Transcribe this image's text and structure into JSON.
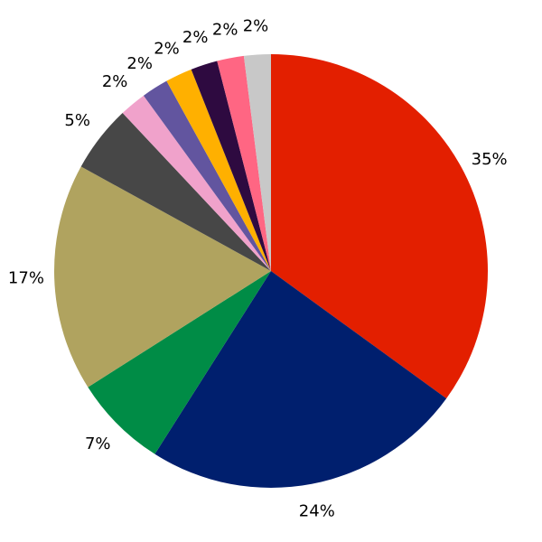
{
  "chart_data": {
    "type": "pie",
    "values": [
      35,
      24,
      7,
      17,
      5,
      2,
      2,
      2,
      2,
      2,
      2
    ],
    "value_labels": [
      "35%",
      "24%",
      "7%",
      "17%",
      "5%",
      "2%",
      "2%",
      "2%",
      "2%",
      "2%",
      "2%"
    ],
    "colors": [
      "#e31f00",
      "#001f6e",
      "#008c46",
      "#b0a35f",
      "#474747",
      "#f0a2cb",
      "#62559f",
      "#ffb000",
      "#2e0a40",
      "#ff6683",
      "#c8c8c8"
    ]
  }
}
